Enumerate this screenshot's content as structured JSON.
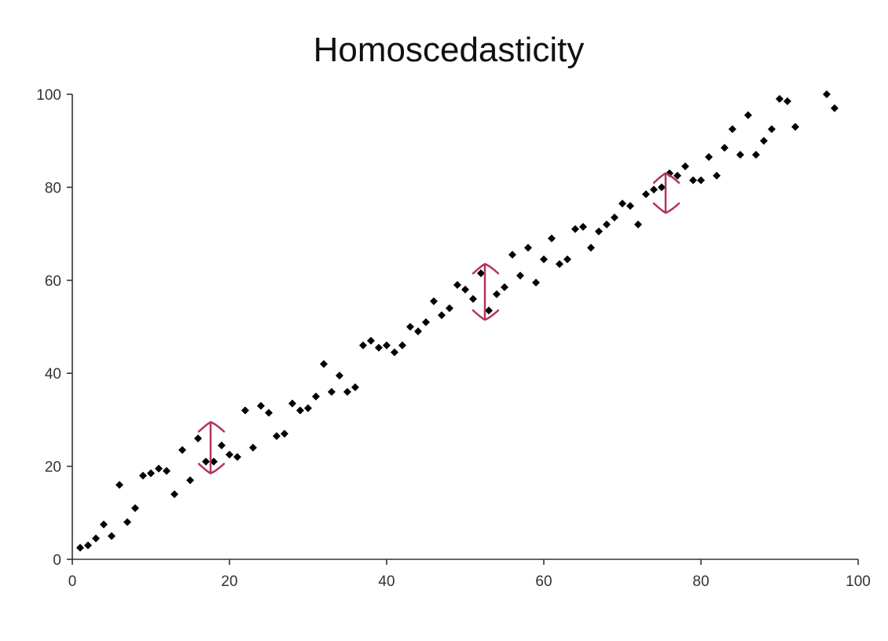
{
  "chart_data": {
    "type": "scatter",
    "title": "Homoscedasticity",
    "xlabel": "",
    "ylabel": "",
    "xlim": [
      0,
      100
    ],
    "ylim": [
      0,
      100
    ],
    "x_ticks": [
      0,
      20,
      40,
      60,
      80,
      100
    ],
    "y_ticks": [
      0,
      20,
      40,
      60,
      80,
      100
    ],
    "grid": false,
    "legend": "none",
    "marker": "diamond",
    "colors": {
      "points": "#000000",
      "arrows": "#b5325f",
      "axis": "#333333"
    },
    "series": [
      {
        "points": [
          [
            1,
            2.5
          ],
          [
            2,
            3
          ],
          [
            3,
            4.5
          ],
          [
            4,
            7.5
          ],
          [
            5,
            5
          ],
          [
            6,
            16
          ],
          [
            7,
            8
          ],
          [
            8,
            11
          ],
          [
            9,
            18
          ],
          [
            10,
            18.5
          ],
          [
            11,
            19.5
          ],
          [
            12,
            19
          ],
          [
            13,
            14
          ],
          [
            14,
            23.5
          ],
          [
            15,
            17
          ],
          [
            16,
            26
          ],
          [
            17,
            21
          ],
          [
            18,
            21
          ],
          [
            19,
            24.5
          ],
          [
            20,
            22.5
          ],
          [
            21,
            22
          ],
          [
            22,
            32
          ],
          [
            23,
            24
          ],
          [
            24,
            33
          ],
          [
            25,
            31.5
          ],
          [
            26,
            26.5
          ],
          [
            27,
            27
          ],
          [
            28,
            33.5
          ],
          [
            29,
            32
          ],
          [
            30,
            32.5
          ],
          [
            31,
            35
          ],
          [
            32,
            42
          ],
          [
            33,
            36
          ],
          [
            34,
            39.5
          ],
          [
            35,
            36
          ],
          [
            36,
            37
          ],
          [
            37,
            46
          ],
          [
            38,
            47
          ],
          [
            39,
            45.5
          ],
          [
            40,
            46
          ],
          [
            41,
            44.5
          ],
          [
            42,
            46
          ],
          [
            43,
            50
          ],
          [
            44,
            49
          ],
          [
            45,
            51
          ],
          [
            46,
            55.5
          ],
          [
            47,
            52.5
          ],
          [
            48,
            54
          ],
          [
            49,
            59
          ],
          [
            50,
            58
          ],
          [
            51,
            56
          ],
          [
            52,
            61.5
          ],
          [
            53,
            53.5
          ],
          [
            54,
            57
          ],
          [
            55,
            58.5
          ],
          [
            56,
            65.5
          ],
          [
            57,
            61
          ],
          [
            58,
            67
          ],
          [
            59,
            59.5
          ],
          [
            60,
            64.5
          ],
          [
            61,
            69
          ],
          [
            62,
            63.5
          ],
          [
            63,
            64.5
          ],
          [
            64,
            71
          ],
          [
            65,
            71.5
          ],
          [
            66,
            67
          ],
          [
            67,
            70.5
          ],
          [
            68,
            72
          ],
          [
            69,
            73.5
          ],
          [
            70,
            76.5
          ],
          [
            71,
            76
          ],
          [
            72,
            72
          ],
          [
            73,
            78.5
          ],
          [
            74,
            79.5
          ],
          [
            75,
            80
          ],
          [
            76,
            83
          ],
          [
            77,
            82.5
          ],
          [
            78,
            84.5
          ],
          [
            79,
            81.5
          ],
          [
            80,
            81.5
          ],
          [
            81,
            86.5
          ],
          [
            82,
            82.5
          ],
          [
            83,
            88.5
          ],
          [
            84,
            92.5
          ],
          [
            85,
            87
          ],
          [
            86,
            95.5
          ],
          [
            87,
            87
          ],
          [
            88,
            90
          ],
          [
            89,
            92.5
          ],
          [
            90,
            99
          ],
          [
            91,
            98.5
          ],
          [
            92,
            93
          ],
          [
            96,
            100
          ],
          [
            97,
            97
          ]
        ]
      }
    ],
    "annotations": [
      {
        "type": "double-arrow",
        "x": 17.6,
        "y_low": 18.5,
        "y_high": 29.5
      },
      {
        "type": "double-arrow",
        "x": 52.5,
        "y_low": 51.5,
        "y_high": 63.5
      },
      {
        "type": "double-arrow",
        "x": 75.5,
        "y_low": 74.5,
        "y_high": 83
      }
    ]
  }
}
